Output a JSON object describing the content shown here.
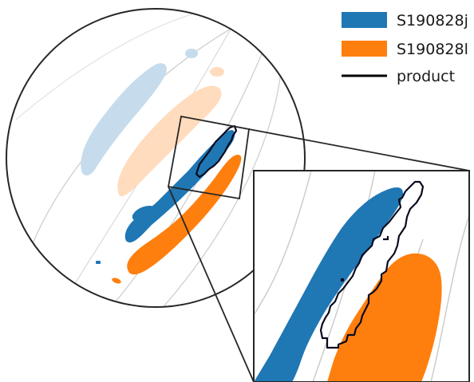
{
  "legend": {
    "placement": "top-right",
    "entries": [
      {
        "label": "S190828j",
        "kind": "patch",
        "color": "#1f77b4"
      },
      {
        "label": "S190828l",
        "kind": "patch",
        "color": "#ff7f0e"
      },
      {
        "label": "product",
        "kind": "line",
        "color": "#000000"
      }
    ]
  },
  "colors": {
    "s190828j": "#1f77b4",
    "s190828j_faded": "#c6dcec",
    "s190828l": "#ff7f0e",
    "s190828l_faded": "#ffdcbd",
    "product": "#0a0a1e",
    "frame": "#262626",
    "grid": "#cccccc",
    "background": "#ffffff"
  }
}
